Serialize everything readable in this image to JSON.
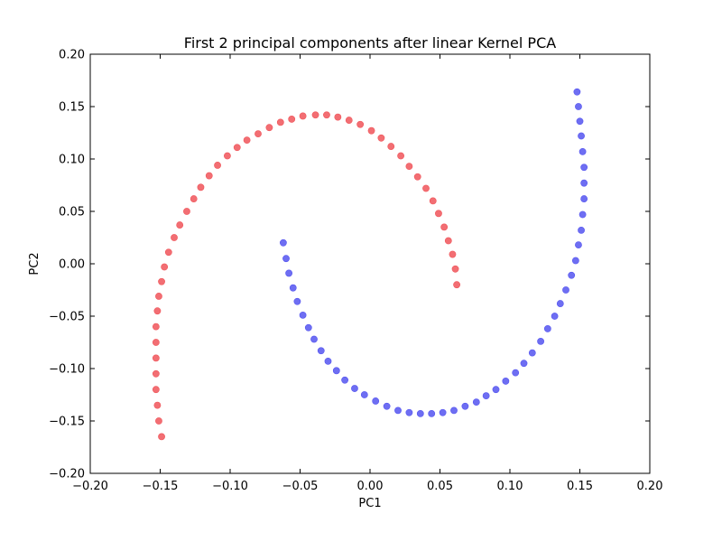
{
  "chart_data": {
    "type": "scatter",
    "title": "First 2 principal components after linear Kernel PCA",
    "xlabel": "PC1",
    "ylabel": "PC2",
    "xlim": [
      -0.2,
      0.2
    ],
    "ylim": [
      -0.2,
      0.2
    ],
    "xticks": [
      "−0.20",
      "−0.15",
      "−0.10",
      "−0.05",
      "0.00",
      "0.05",
      "0.10",
      "0.15",
      "0.20"
    ],
    "yticks": [
      "−0.20",
      "−0.15",
      "−0.10",
      "−0.05",
      "0.00",
      "0.05",
      "0.10",
      "0.15",
      "0.20"
    ],
    "grid": false,
    "series": [
      {
        "color": "#f0555a",
        "points": [
          [
            -0.149,
            -0.165
          ],
          [
            -0.151,
            -0.15
          ],
          [
            -0.152,
            -0.135
          ],
          [
            -0.153,
            -0.12
          ],
          [
            -0.153,
            -0.105
          ],
          [
            -0.153,
            -0.09
          ],
          [
            -0.153,
            -0.075
          ],
          [
            -0.153,
            -0.06
          ],
          [
            -0.152,
            -0.045
          ],
          [
            -0.151,
            -0.031
          ],
          [
            -0.149,
            -0.017
          ],
          [
            -0.147,
            -0.003
          ],
          [
            -0.144,
            0.011
          ],
          [
            -0.14,
            0.025
          ],
          [
            -0.136,
            0.037
          ],
          [
            -0.131,
            0.05
          ],
          [
            -0.126,
            0.062
          ],
          [
            -0.121,
            0.073
          ],
          [
            -0.115,
            0.084
          ],
          [
            -0.109,
            0.094
          ],
          [
            -0.102,
            0.103
          ],
          [
            -0.095,
            0.111
          ],
          [
            -0.088,
            0.118
          ],
          [
            -0.08,
            0.124
          ],
          [
            -0.072,
            0.13
          ],
          [
            -0.064,
            0.135
          ],
          [
            -0.056,
            0.138
          ],
          [
            -0.048,
            0.141
          ],
          [
            -0.039,
            0.142
          ],
          [
            -0.031,
            0.142
          ],
          [
            -0.023,
            0.14
          ],
          [
            -0.015,
            0.137
          ],
          [
            -0.007,
            0.133
          ],
          [
            0.001,
            0.127
          ],
          [
            0.008,
            0.12
          ],
          [
            0.015,
            0.112
          ],
          [
            0.022,
            0.103
          ],
          [
            0.028,
            0.093
          ],
          [
            0.034,
            0.083
          ],
          [
            0.04,
            0.072
          ],
          [
            0.045,
            0.06
          ],
          [
            0.049,
            0.048
          ],
          [
            0.053,
            0.035
          ],
          [
            0.056,
            0.022
          ],
          [
            0.059,
            0.009
          ],
          [
            0.061,
            -0.005
          ],
          [
            0.062,
            -0.02
          ]
        ]
      },
      {
        "color": "#5555f0",
        "points": [
          [
            -0.062,
            0.02
          ],
          [
            -0.06,
            0.005
          ],
          [
            -0.058,
            -0.009
          ],
          [
            -0.055,
            -0.023
          ],
          [
            -0.052,
            -0.036
          ],
          [
            -0.048,
            -0.049
          ],
          [
            -0.044,
            -0.061
          ],
          [
            -0.04,
            -0.072
          ],
          [
            -0.035,
            -0.083
          ],
          [
            -0.03,
            -0.093
          ],
          [
            -0.024,
            -0.102
          ],
          [
            -0.018,
            -0.111
          ],
          [
            -0.011,
            -0.119
          ],
          [
            -0.004,
            -0.125
          ],
          [
            0.004,
            -0.131
          ],
          [
            0.012,
            -0.136
          ],
          [
            0.02,
            -0.14
          ],
          [
            0.028,
            -0.142
          ],
          [
            0.036,
            -0.143
          ],
          [
            0.044,
            -0.143
          ],
          [
            0.052,
            -0.142
          ],
          [
            0.06,
            -0.14
          ],
          [
            0.068,
            -0.136
          ],
          [
            0.076,
            -0.132
          ],
          [
            0.083,
            -0.126
          ],
          [
            0.09,
            -0.12
          ],
          [
            0.097,
            -0.112
          ],
          [
            0.104,
            -0.104
          ],
          [
            0.11,
            -0.095
          ],
          [
            0.116,
            -0.085
          ],
          [
            0.122,
            -0.074
          ],
          [
            0.127,
            -0.062
          ],
          [
            0.132,
            -0.05
          ],
          [
            0.136,
            -0.038
          ],
          [
            0.14,
            -0.025
          ],
          [
            0.144,
            -0.011
          ],
          [
            0.147,
            0.003
          ],
          [
            0.149,
            0.018
          ],
          [
            0.151,
            0.032
          ],
          [
            0.152,
            0.047
          ],
          [
            0.153,
            0.062
          ],
          [
            0.153,
            0.077
          ],
          [
            0.153,
            0.092
          ],
          [
            0.152,
            0.107
          ],
          [
            0.151,
            0.122
          ],
          [
            0.15,
            0.136
          ],
          [
            0.149,
            0.15
          ],
          [
            0.148,
            0.164
          ]
        ]
      }
    ]
  }
}
